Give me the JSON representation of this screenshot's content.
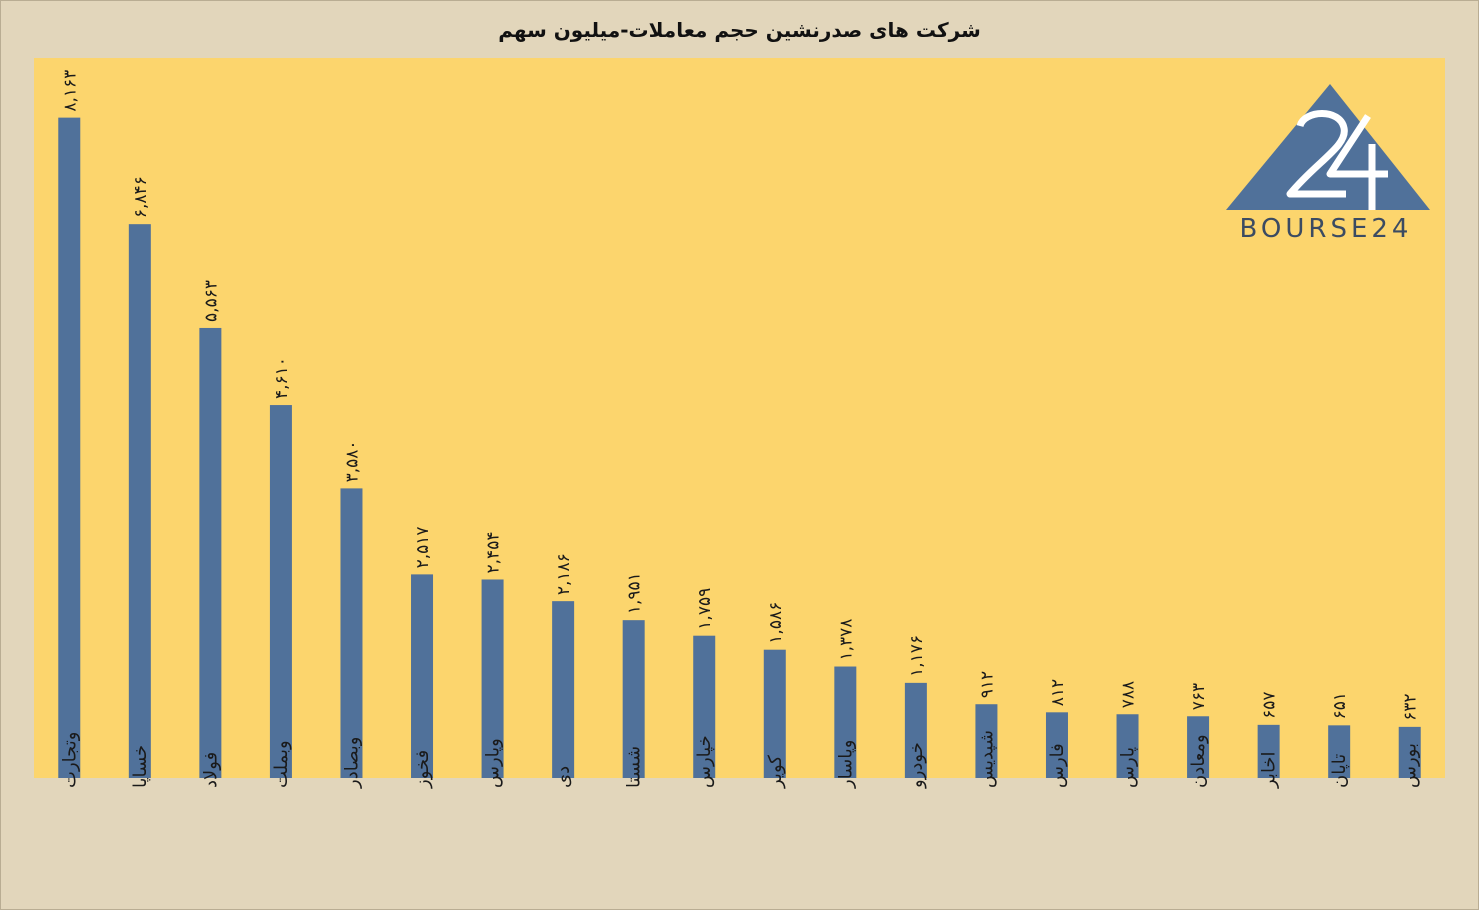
{
  "chart_data": {
    "type": "bar",
    "title": "شرکت های صدرنشین حجم معاملات-میلیون سهم",
    "categories": [
      "وتجارت",
      "خساپا",
      "فولاد",
      "وبملت",
      "وبصادر",
      "فخوز",
      "وپارس",
      "دی",
      "شستا",
      "خپارس",
      "کویر",
      "وپاسار",
      "خودرو",
      "شپدیس",
      "فارس",
      "پارس",
      "ومعادن",
      "اخابر",
      "تاپان",
      "بورس"
    ],
    "values": [
      8163,
      6846,
      5563,
      4610,
      3580,
      2517,
      2454,
      2186,
      1951,
      1759,
      1586,
      1378,
      1176,
      912,
      812,
      788,
      763,
      657,
      651,
      632
    ],
    "value_labels": [
      "۸,۱۶۳",
      "۶,۸۴۶",
      "۵,۵۶۳",
      "۴,۶۱۰",
      "۳,۵۸۰",
      "۲,۵۱۷",
      "۲,۴۵۴",
      "۲,۱۸۶",
      "۱,۹۵۱",
      "۱,۷۵۹",
      "۱,۵۸۶",
      "۱,۳۷۸",
      "۱,۱۷۶",
      "۹۱۲",
      "۸۱۲",
      "۷۸۸",
      "۷۶۳",
      "۶۵۷",
      "۶۵۱",
      "۶۳۲"
    ],
    "xlabel": "",
    "ylabel": "",
    "ylim": [
      0,
      8900
    ],
    "grid": false,
    "legend": "none",
    "bar_color": "#50719a",
    "plot_background": "#fcd56d",
    "page_background": "#e2d6bb"
  },
  "logo": {
    "text": "BOURSE24",
    "icon": "triangle-24-logo",
    "color": "#50719a"
  }
}
